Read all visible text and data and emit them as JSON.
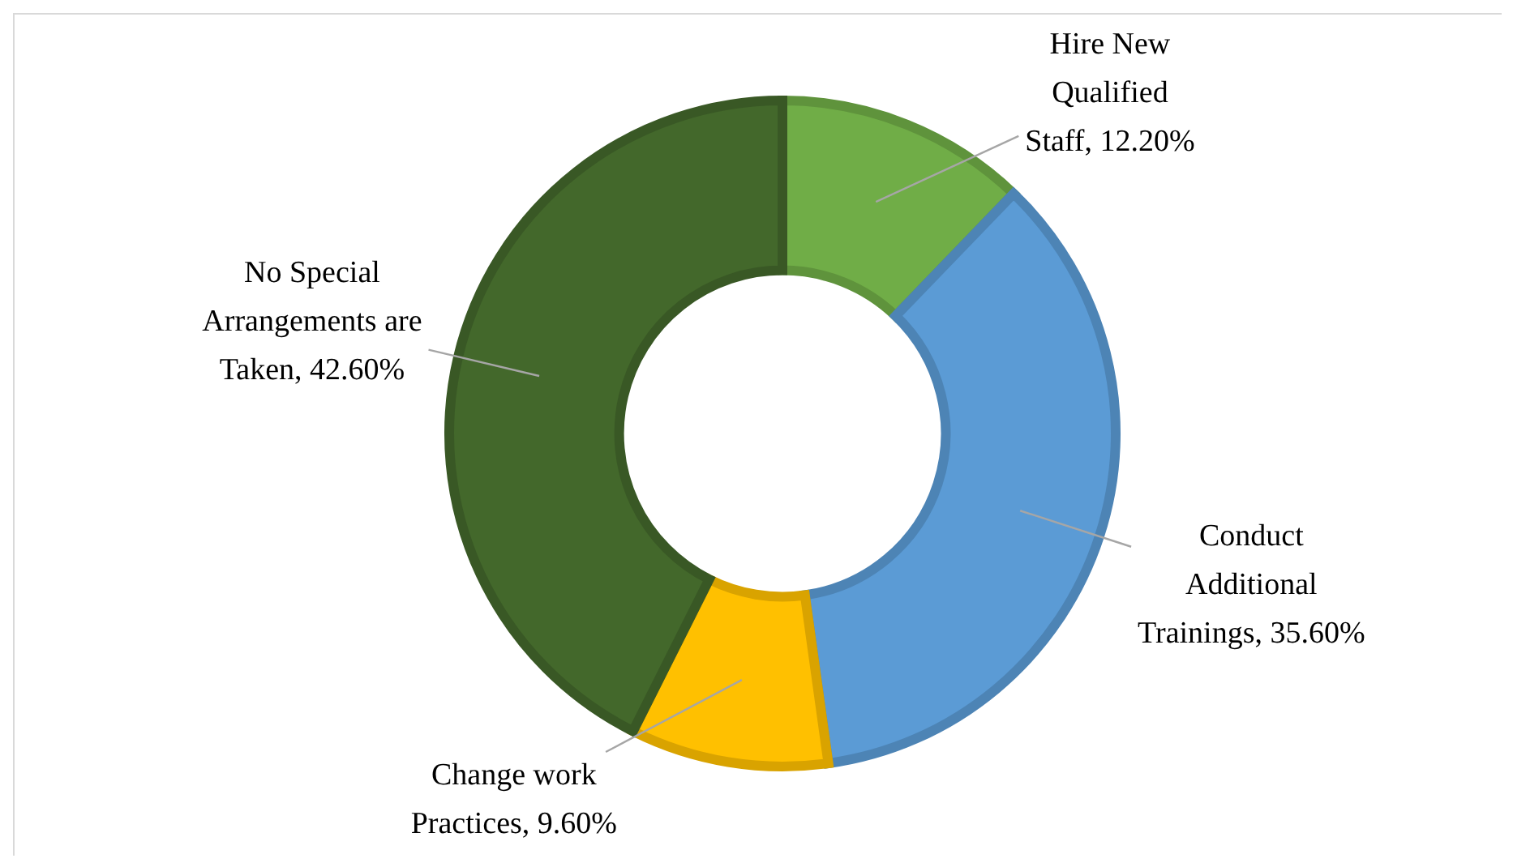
{
  "chart_data": {
    "type": "donut",
    "categories": [
      "Hire New Qualified Staff",
      "Conduct Additional Trainings",
      "Change work Practices",
      "No Special Arrangements are Taken"
    ],
    "values": [
      12.2,
      35.6,
      9.6,
      42.6
    ],
    "colors": [
      "#70ad47",
      "#5b9bd5",
      "#ffc000",
      "#43682b"
    ],
    "value_labels": [
      "12.20%",
      "35.60%",
      "9.60%",
      "42.60%"
    ],
    "legend": false
  }
}
